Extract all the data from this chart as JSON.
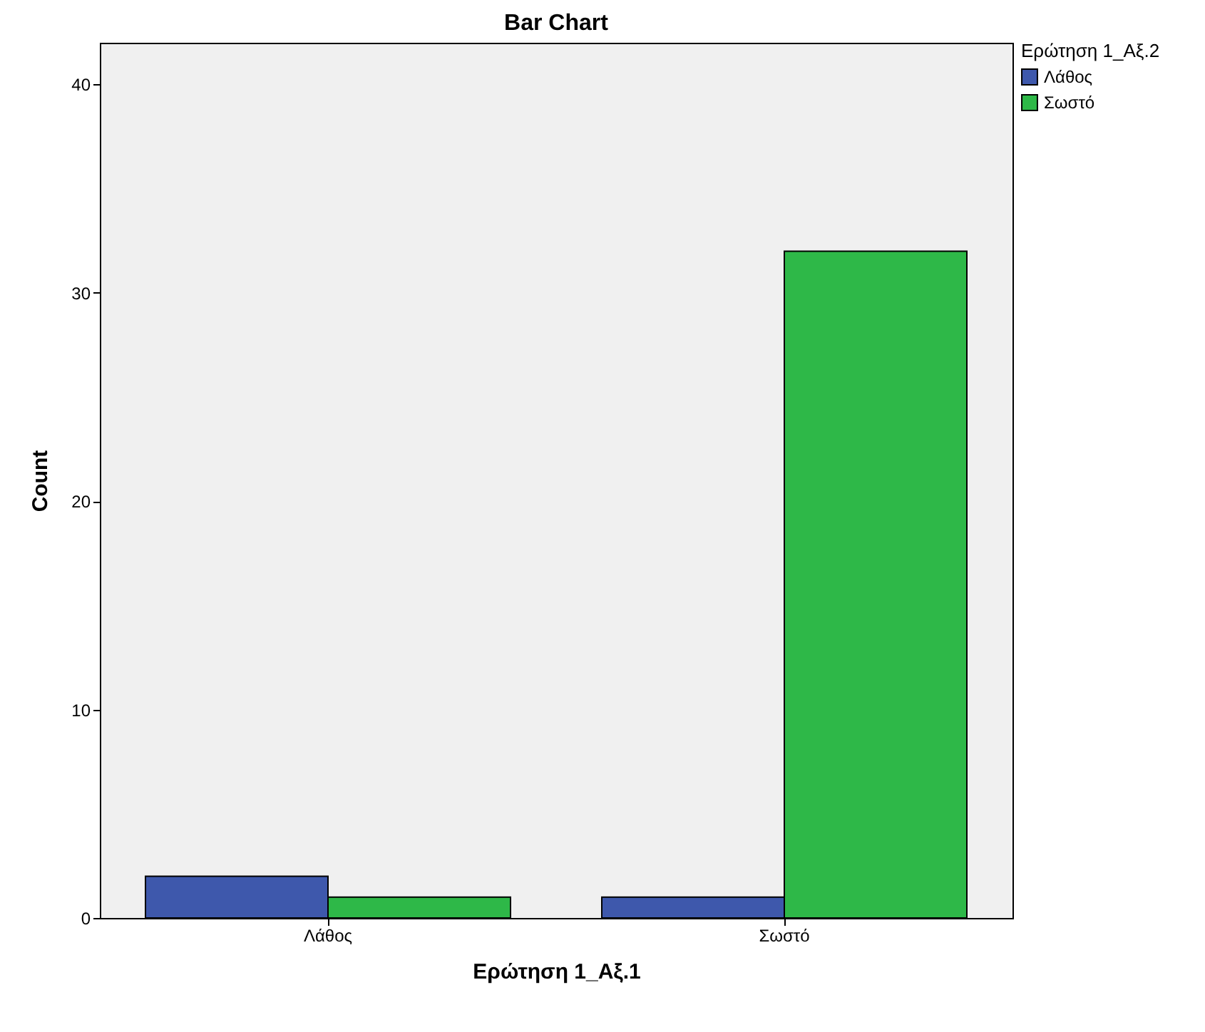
{
  "chart_data": {
    "type": "bar",
    "title": "Bar Chart",
    "xlabel": "Ερώτηση 1_Αξ.1",
    "ylabel": "Count",
    "legend_title": "Ερώτηση 1_Αξ.2",
    "categories": [
      "Λάθος",
      "Σωστό"
    ],
    "series": [
      {
        "name": "Λάθος",
        "color": "#3e58ac",
        "values": [
          2,
          1
        ]
      },
      {
        "name": "Σωστό",
        "color": "#2eb848",
        "values": [
          1,
          32
        ]
      }
    ],
    "ylim": [
      0,
      42
    ],
    "yticks": [
      0,
      10,
      20,
      30,
      40
    ],
    "grid": false,
    "legend": "top right"
  }
}
